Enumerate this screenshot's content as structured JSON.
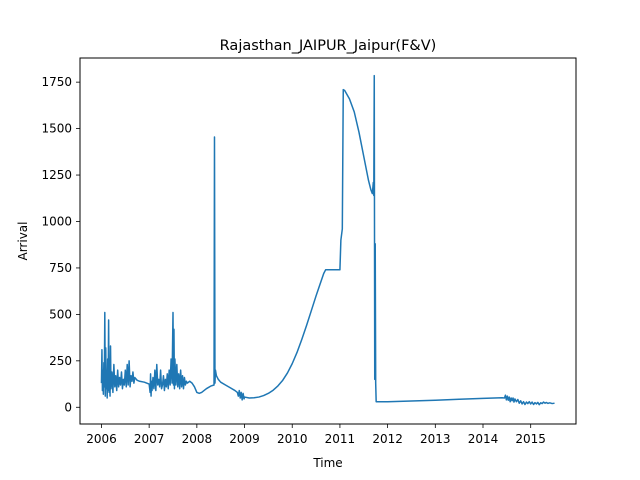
{
  "chart_data": {
    "type": "line",
    "title": "Rajasthan_JAIPUR_Jaipur(F&V)",
    "xlabel": "Time",
    "ylabel": "Arrival",
    "xlim": [
      2005.55,
      2015.95
    ],
    "ylim": [
      -90,
      1880
    ],
    "xticks": [
      2006,
      2007,
      2008,
      2009,
      2010,
      2011,
      2012,
      2013,
      2014,
      2015
    ],
    "yticks": [
      0,
      250,
      500,
      750,
      1000,
      1250,
      1500,
      1750
    ],
    "grid": false,
    "line_color": "#1f77b4",
    "series": [
      {
        "points": [
          [
            2006.0,
            130
          ],
          [
            2006.01,
            310
          ],
          [
            2006.02,
            90
          ],
          [
            2006.03,
            200
          ],
          [
            2006.04,
            70
          ],
          [
            2006.05,
            240
          ],
          [
            2006.06,
            110
          ],
          [
            2006.07,
            510
          ],
          [
            2006.08,
            60
          ],
          [
            2006.09,
            320
          ],
          [
            2006.1,
            100
          ],
          [
            2006.11,
            180
          ],
          [
            2006.12,
            50
          ],
          [
            2006.13,
            260
          ],
          [
            2006.14,
            90
          ],
          [
            2006.15,
            470
          ],
          [
            2006.16,
            80
          ],
          [
            2006.17,
            210
          ],
          [
            2006.18,
            60
          ],
          [
            2006.19,
            330
          ],
          [
            2006.2,
            100
          ],
          [
            2006.22,
            190
          ],
          [
            2006.24,
            80
          ],
          [
            2006.26,
            230
          ],
          [
            2006.28,
            110
          ],
          [
            2006.3,
            170
          ],
          [
            2006.32,
            90
          ],
          [
            2006.34,
            200
          ],
          [
            2006.36,
            110
          ],
          [
            2006.38,
            160
          ],
          [
            2006.4,
            120
          ],
          [
            2006.42,
            190
          ],
          [
            2006.44,
            100
          ],
          [
            2006.46,
            150
          ],
          [
            2006.48,
            120
          ],
          [
            2006.5,
            200
          ],
          [
            2006.52,
            110
          ],
          [
            2006.54,
            230
          ],
          [
            2006.56,
            120
          ],
          [
            2006.58,
            250
          ],
          [
            2006.6,
            110
          ],
          [
            2006.62,
            170
          ],
          [
            2006.64,
            140
          ],
          [
            2006.66,
            190
          ],
          [
            2006.68,
            130
          ],
          [
            2006.7,
            160
          ],
          [
            2006.75,
            145
          ],
          [
            2006.8,
            140
          ],
          [
            2006.9,
            135
          ],
          [
            2007.0,
            125
          ],
          [
            2007.02,
            80
          ],
          [
            2007.03,
            180
          ],
          [
            2007.04,
            60
          ],
          [
            2007.05,
            140
          ],
          [
            2007.06,
            90
          ],
          [
            2007.08,
            160
          ],
          [
            2007.1,
            100
          ],
          [
            2007.12,
            200
          ],
          [
            2007.14,
            90
          ],
          [
            2007.16,
            230
          ],
          [
            2007.18,
            120
          ],
          [
            2007.2,
            150
          ],
          [
            2007.22,
            110
          ],
          [
            2007.24,
            200
          ],
          [
            2007.26,
            100
          ],
          [
            2007.28,
            120
          ],
          [
            2007.3,
            170
          ],
          [
            2007.32,
            90
          ],
          [
            2007.34,
            150
          ],
          [
            2007.36,
            110
          ],
          [
            2007.38,
            180
          ],
          [
            2007.4,
            100
          ],
          [
            2007.42,
            200
          ],
          [
            2007.44,
            120
          ],
          [
            2007.46,
            260
          ],
          [
            2007.48,
            130
          ],
          [
            2007.5,
            510
          ],
          [
            2007.51,
            120
          ],
          [
            2007.52,
            420
          ],
          [
            2007.53,
            100
          ],
          [
            2007.54,
            260
          ],
          [
            2007.56,
            120
          ],
          [
            2007.58,
            230
          ],
          [
            2007.6,
            110
          ],
          [
            2007.62,
            180
          ],
          [
            2007.64,
            100
          ],
          [
            2007.66,
            200
          ],
          [
            2007.68,
            110
          ],
          [
            2007.7,
            170
          ],
          [
            2007.72,
            100
          ],
          [
            2007.74,
            160
          ],
          [
            2007.76,
            120
          ],
          [
            2007.78,
            140
          ],
          [
            2007.8,
            130
          ],
          [
            2007.85,
            140
          ],
          [
            2007.9,
            130
          ],
          [
            2007.95,
            110
          ],
          [
            2008.0,
            80
          ],
          [
            2008.05,
            75
          ],
          [
            2008.1,
            80
          ],
          [
            2008.2,
            100
          ],
          [
            2008.3,
            115
          ],
          [
            2008.36,
            120
          ],
          [
            2008.37,
            1455
          ],
          [
            2008.38,
            130
          ],
          [
            2008.39,
            200
          ],
          [
            2008.41,
            170
          ],
          [
            2008.45,
            150
          ],
          [
            2008.5,
            135
          ],
          [
            2008.6,
            120
          ],
          [
            2008.7,
            105
          ],
          [
            2008.8,
            90
          ],
          [
            2008.85,
            80
          ],
          [
            2008.87,
            60
          ],
          [
            2008.89,
            90
          ],
          [
            2008.91,
            50
          ],
          [
            2008.93,
            80
          ],
          [
            2008.95,
            40
          ],
          [
            2008.97,
            75
          ],
          [
            2008.99,
            45
          ],
          [
            2009.0,
            55
          ],
          [
            2009.1,
            50
          ],
          [
            2009.2,
            51
          ],
          [
            2009.3,
            55
          ],
          [
            2009.4,
            63
          ],
          [
            2009.5,
            75
          ],
          [
            2009.6,
            92
          ],
          [
            2009.7,
            115
          ],
          [
            2009.8,
            145
          ],
          [
            2009.9,
            185
          ],
          [
            2010.0,
            235
          ],
          [
            2010.1,
            295
          ],
          [
            2010.2,
            365
          ],
          [
            2010.3,
            440
          ],
          [
            2010.4,
            520
          ],
          [
            2010.5,
            600
          ],
          [
            2010.58,
            660
          ],
          [
            2010.66,
            720
          ],
          [
            2010.7,
            740
          ],
          [
            2011.0,
            740
          ],
          [
            2011.02,
            900
          ],
          [
            2011.05,
            960
          ],
          [
            2011.07,
            1710
          ],
          [
            2011.1,
            1705
          ],
          [
            2011.2,
            1660
          ],
          [
            2011.3,
            1590
          ],
          [
            2011.4,
            1480
          ],
          [
            2011.5,
            1350
          ],
          [
            2011.6,
            1220
          ],
          [
            2011.65,
            1170
          ],
          [
            2011.68,
            1150
          ],
          [
            2011.7,
            1210
          ],
          [
            2011.71,
            1140
          ],
          [
            2011.72,
            1785
          ],
          [
            2011.73,
            150
          ],
          [
            2011.74,
            880
          ],
          [
            2011.75,
            130
          ],
          [
            2011.76,
            30
          ],
          [
            2012.0,
            30
          ],
          [
            2012.5,
            34
          ],
          [
            2013.0,
            38
          ],
          [
            2013.5,
            43
          ],
          [
            2014.0,
            48
          ],
          [
            2014.4,
            51
          ],
          [
            2014.45,
            50
          ],
          [
            2014.47,
            65
          ],
          [
            2014.49,
            40
          ],
          [
            2014.51,
            60
          ],
          [
            2014.53,
            38
          ],
          [
            2014.55,
            55
          ],
          [
            2014.57,
            30
          ],
          [
            2014.59,
            50
          ],
          [
            2014.61,
            35
          ],
          [
            2014.63,
            50
          ],
          [
            2014.65,
            28
          ],
          [
            2014.67,
            45
          ],
          [
            2014.7,
            30
          ],
          [
            2014.73,
            42
          ],
          [
            2014.76,
            22
          ],
          [
            2014.79,
            35
          ],
          [
            2014.82,
            18
          ],
          [
            2014.85,
            30
          ],
          [
            2014.88,
            15
          ],
          [
            2014.91,
            28
          ],
          [
            2014.94,
            20
          ],
          [
            2014.97,
            30
          ],
          [
            2015.0,
            18
          ],
          [
            2015.03,
            28
          ],
          [
            2015.06,
            15
          ],
          [
            2015.09,
            25
          ],
          [
            2015.12,
            18
          ],
          [
            2015.15,
            26
          ],
          [
            2015.18,
            14
          ],
          [
            2015.21,
            24
          ],
          [
            2015.24,
            20
          ],
          [
            2015.27,
            28
          ],
          [
            2015.3,
            22
          ],
          [
            2015.33,
            26
          ],
          [
            2015.36,
            21
          ],
          [
            2015.4,
            24
          ],
          [
            2015.45,
            20
          ],
          [
            2015.5,
            22
          ]
        ]
      }
    ]
  }
}
